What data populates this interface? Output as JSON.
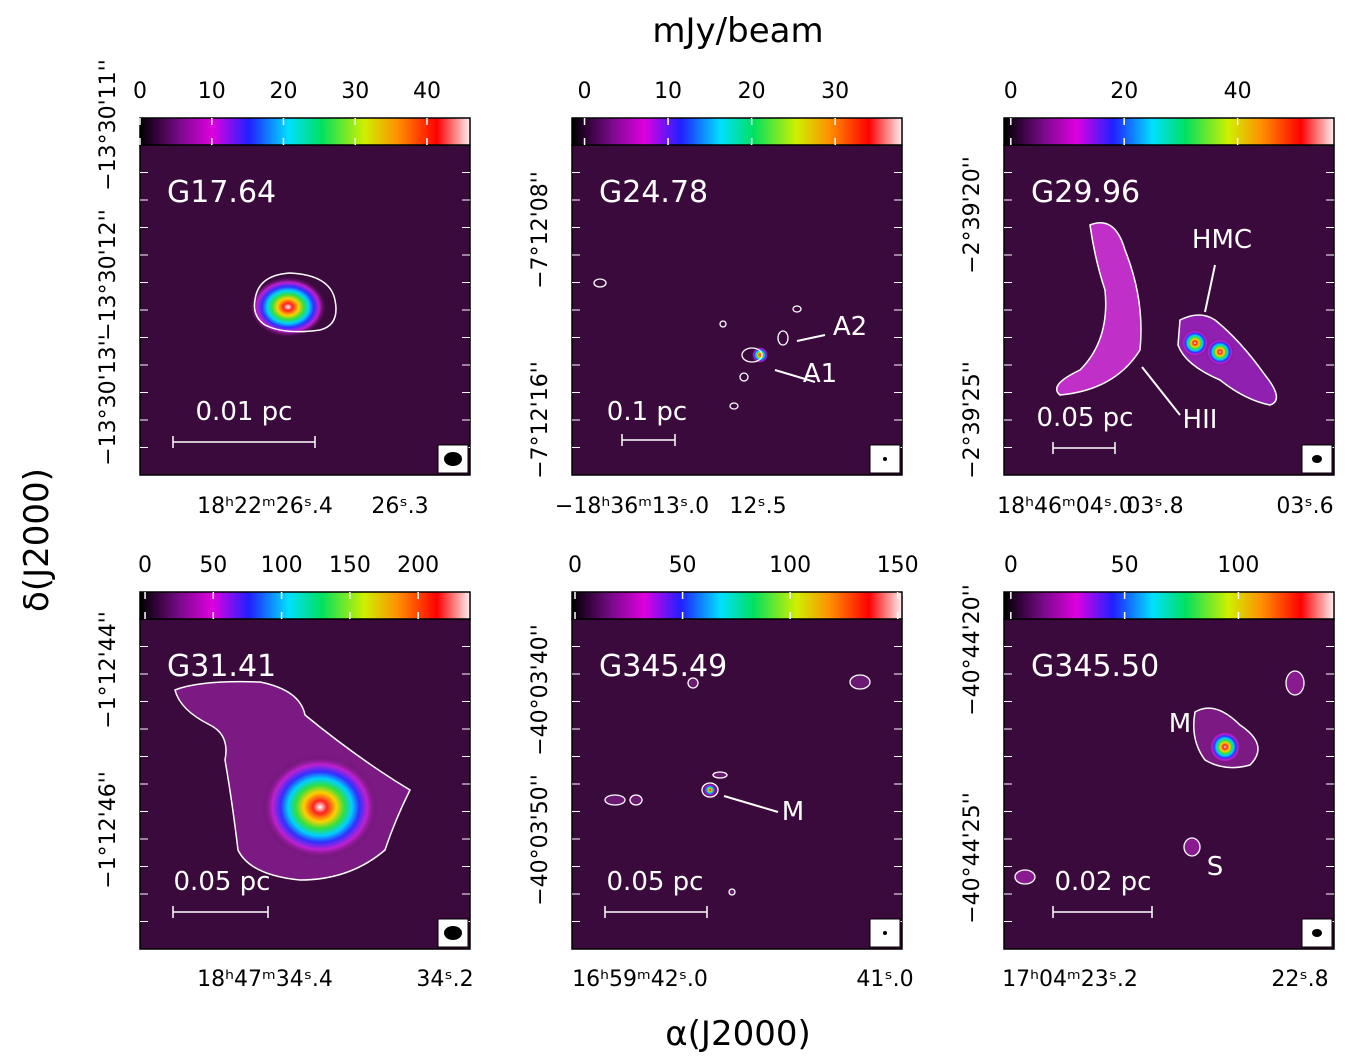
{
  "header": {
    "unit": "mJy/beam",
    "x_label": "α(J2000)",
    "y_label": "δ(J2000)"
  },
  "panels": [
    {
      "name": "G17.64",
      "colorbar": {
        "range": [
          0,
          46
        ],
        "ticks": [
          0,
          10,
          20,
          30,
          40
        ]
      },
      "scale_bar": "0.01 pc",
      "y_ticks": [
        "−13°30'13''",
        "−13°30'12''",
        "−13°30'11''"
      ],
      "x_ticks": [
        "18ʰ22ᵐ26ˢ.4",
        "26ˢ.3"
      ],
      "annotations": []
    },
    {
      "name": "G24.78",
      "colorbar": {
        "range": [
          -1.5,
          38
        ],
        "ticks": [
          0,
          10,
          20,
          30
        ]
      },
      "scale_bar": "0.1 pc",
      "y_ticks": [
        "−7°12'16''",
        "−7°12'08''"
      ],
      "x_ticks": [
        "−18ʰ36ᵐ13ˢ.0",
        "12ˢ.5"
      ],
      "annotations": [
        "A2",
        "A1"
      ]
    },
    {
      "name": "G29.96",
      "colorbar": {
        "range": [
          -1.2,
          57
        ],
        "ticks": [
          0,
          20,
          40
        ]
      },
      "scale_bar": "0.05 pc",
      "y_ticks": [
        "−2°39'25''",
        "−2°39'20''"
      ],
      "x_ticks": [
        "18ʰ46ᵐ04ˢ.0",
        "03ˢ.8",
        "03ˢ.6"
      ],
      "annotations": [
        "HMC",
        "HII"
      ]
    },
    {
      "name": "G31.41",
      "colorbar": {
        "range": [
          -3.7,
          238
        ],
        "ticks": [
          0,
          50,
          100,
          150,
          200
        ]
      },
      "scale_bar": "0.05 pc",
      "y_ticks": [
        "−1°12'46''",
        "−1°12'44''"
      ],
      "x_ticks": [
        "18ʰ47ᵐ34ˢ.4",
        "34ˢ.2"
      ],
      "annotations": []
    },
    {
      "name": "G345.49",
      "colorbar": {
        "range": [
          -1.4,
          152
        ],
        "ticks": [
          0,
          50,
          100,
          150
        ]
      },
      "scale_bar": "0.05 pc",
      "y_ticks": [
        "−40°03'50''",
        "−40°03'40''"
      ],
      "x_ticks": [
        "16ʰ59ᵐ42ˢ.0",
        "41ˢ.0"
      ],
      "annotations": [
        "M"
      ]
    },
    {
      "name": "G345.50",
      "colorbar": {
        "range": [
          -3,
          142
        ],
        "ticks": [
          0,
          50,
          100
        ]
      },
      "scale_bar": "0.02 pc",
      "y_ticks": [
        "−40°44'25''",
        "−40°44'20''"
      ],
      "x_ticks": [
        "17ʰ04ᵐ23ˢ.2",
        "22ˢ.8"
      ],
      "annotations": [
        "M",
        "S"
      ]
    }
  ]
}
